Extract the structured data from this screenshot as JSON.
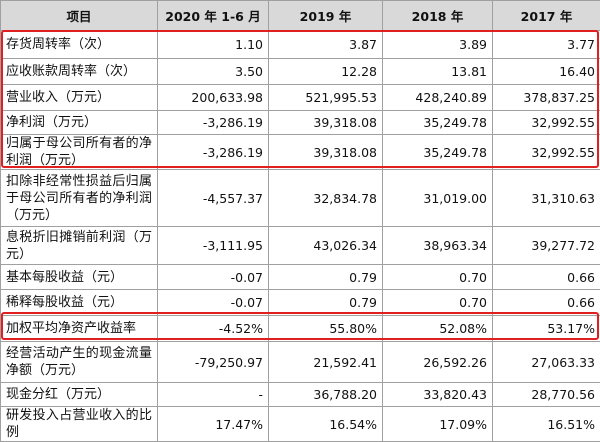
{
  "table": {
    "header": [
      "项目",
      "2020 年 1-6 月",
      "2019 年",
      "2018 年",
      "2017 年"
    ],
    "rows": [
      [
        "存货周转率（次）",
        "1.10",
        "3.87",
        "3.89",
        "3.77"
      ],
      [
        "应收账款周转率（次）",
        "3.50",
        "12.28",
        "13.81",
        "16.40"
      ],
      [
        "营业收入（万元）",
        "200,633.98",
        "521,995.53",
        "428,240.89",
        "378,837.25"
      ],
      [
        "净利润（万元）",
        "-3,286.19",
        "39,318.08",
        "35,249.78",
        "32,992.55"
      ],
      [
        "归属于母公司所有者的净利润（万元）",
        "-3,286.19",
        "39,318.08",
        "35,249.78",
        "32,992.55"
      ],
      [
        "扣除非经常性损益后归属于母公司所有者的净利润（万元）",
        "-4,557.37",
        "32,834.78",
        "31,019.00",
        "31,310.63"
      ],
      [
        "息税折旧摊销前利润（万元）",
        "-3,111.95",
        "43,026.34",
        "38,963.34",
        "39,277.72"
      ],
      [
        "基本每股收益（元）",
        "-0.07",
        "0.79",
        "0.70",
        "0.66"
      ],
      [
        "稀释每股收益（元）",
        "-0.07",
        "0.79",
        "0.70",
        "0.66"
      ],
      [
        "加权平均净资产收益率",
        "-4.52%",
        "55.80%",
        "52.08%",
        "53.17%"
      ],
      [
        "经营活动产生的现金流量净额（万元）",
        "-79,250.97",
        "21,592.41",
        "26,592.26",
        "27,063.33"
      ],
      [
        "现金分红（万元）",
        "-",
        "36,788.20",
        "33,820.43",
        "28,770.56"
      ],
      [
        "研发投入占营业收入的比例",
        "17.47%",
        "16.54%",
        "17.09%",
        "16.51%"
      ]
    ]
  }
}
